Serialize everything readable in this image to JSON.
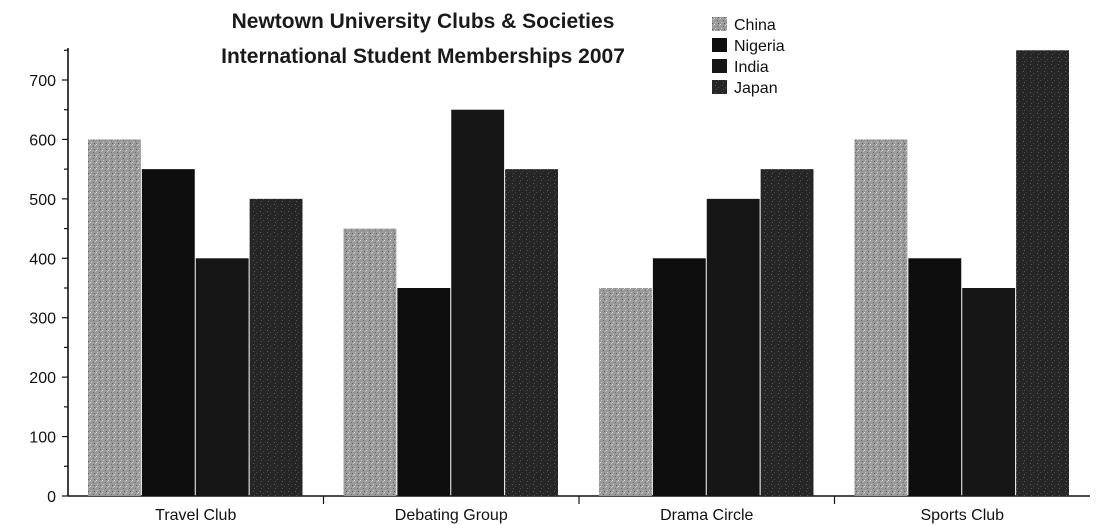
{
  "chart_data": {
    "type": "bar",
    "title": [
      "Newtown University Clubs & Societies",
      "International Student Memberships 2007"
    ],
    "categories": [
      "Travel Club",
      "Debating Group",
      "Drama Circle",
      "Sports Club"
    ],
    "series": [
      {
        "name": "China",
        "values": [
          600,
          450,
          350,
          600
        ],
        "color": "#9a9a9a"
      },
      {
        "name": "Nigeria",
        "values": [
          550,
          350,
          400,
          400
        ],
        "color": "#111111"
      },
      {
        "name": "India",
        "values": [
          400,
          650,
          500,
          350
        ],
        "color": "#1c1c1c"
      },
      {
        "name": "Japan",
        "values": [
          500,
          550,
          550,
          750
        ],
        "color": "#2a2a2a"
      }
    ],
    "yticks": [
      "0",
      "100",
      "200",
      "300",
      "400",
      "500",
      "600",
      "700"
    ],
    "ylim": [
      0,
      750
    ],
    "xlabel": "",
    "ylabel": "",
    "grid": false,
    "legend": "top-center"
  }
}
